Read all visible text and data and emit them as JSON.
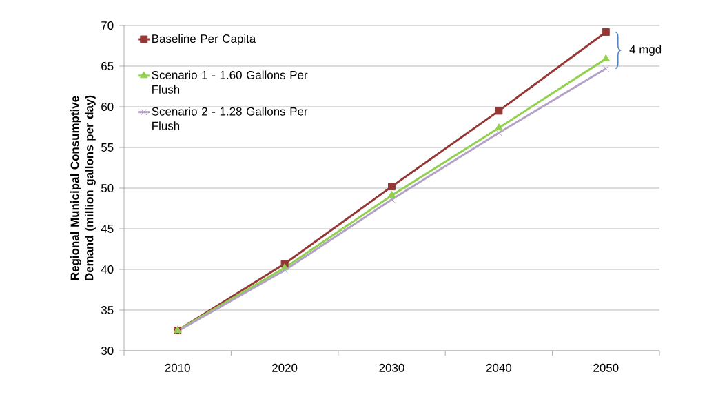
{
  "chart_data": {
    "type": "line",
    "ylabel": "Regional Municipal Consumptive Demand (million gallons per day)",
    "categories": [
      "2010",
      "2020",
      "2030",
      "2040",
      "2050"
    ],
    "series": [
      {
        "name": "Baseline Per Capita",
        "color": "#953735",
        "marker": "square",
        "values": [
          32.5,
          40.7,
          50.2,
          59.5,
          69.2
        ]
      },
      {
        "name": "Scenario 1 - 1.60 Gallons Per Flush",
        "color": "#92d050",
        "marker": "triangle",
        "values": [
          32.5,
          40.2,
          49.1,
          57.4,
          65.9
        ]
      },
      {
        "name": "Scenario 2 - 1.28 Gallons Per Flush",
        "color": "#b3a2c7",
        "marker": "cross",
        "values": [
          32.4,
          39.9,
          48.6,
          56.8,
          64.7
        ]
      }
    ],
    "ylim": [
      30,
      70
    ],
    "yticks": [
      30,
      35,
      40,
      45,
      50,
      55,
      60,
      65,
      70
    ],
    "grid": "y",
    "legend": "top left",
    "line_style": "solid",
    "annotations": [
      "4 mgd"
    ]
  }
}
